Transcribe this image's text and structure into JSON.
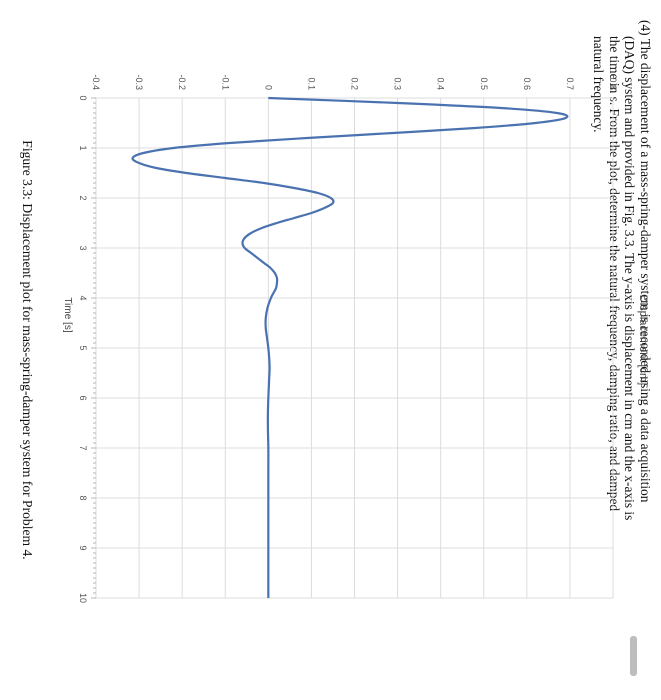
{
  "problem": {
    "number": "(4)",
    "lines": [
      "The displacement of a mass-spring-damper system is recorded using a data acquisition",
      "(DAQ) system and provided in Fig. 3.3. The y-axis is displacement in cm and the x-axis is",
      "the time in s. From the plot, determine the natural frequency, damping ratio, and damped",
      "natural frequency."
    ]
  },
  "caption": "Figure 3.3: Displacement plot for mass-spring-damper system for Problem 4.",
  "chart_data": {
    "type": "line",
    "title": "",
    "xlabel": "Time [s]",
    "ylabel": "Displacement [cm]",
    "xlim": [
      0,
      10
    ],
    "ylim": [
      -0.4,
      0.8
    ],
    "xticks": [
      "0",
      "1",
      "2",
      "3",
      "4",
      "5",
      "6",
      "7",
      "8",
      "9",
      "10"
    ],
    "yticks": [
      "-0.4",
      "-0.3",
      "-0.2",
      "-0.1",
      "0",
      "0.1",
      "0.2",
      "0.3",
      "0.4",
      "0.5",
      "0.6",
      "0.7",
      "0.8"
    ],
    "grid": true,
    "series": [
      {
        "color": "#4a72b0",
        "x": [
          0,
          0.1,
          0.2,
          0.3,
          0.4,
          0.5,
          0.6,
          0.7,
          0.8,
          0.9,
          1.0,
          1.1,
          1.2,
          1.3,
          1.4,
          1.5,
          1.6,
          1.7,
          1.8,
          1.9,
          2.0,
          2.1,
          2.2,
          2.3,
          2.4,
          2.5,
          2.6,
          2.7,
          2.8,
          2.9,
          3.0,
          3.1,
          3.2,
          3.3,
          3.4,
          3.5,
          3.6,
          3.7,
          3.8,
          3.9,
          4.0,
          4.2,
          4.4,
          4.6,
          4.8,
          5.0,
          5.2,
          5.4,
          5.6,
          5.8,
          6.0,
          6.3,
          6.6,
          7.0,
          7.5,
          8.0,
          8.5,
          9.0,
          9.5,
          10.0
        ],
        "y": [
          0.0,
          0.3,
          0.54,
          0.67,
          0.69,
          0.62,
          0.48,
          0.29,
          0.09,
          -0.09,
          -0.22,
          -0.29,
          -0.315,
          -0.3,
          -0.26,
          -0.19,
          -0.1,
          -0.01,
          0.06,
          0.115,
          0.145,
          0.15,
          0.13,
          0.1,
          0.06,
          0.02,
          -0.015,
          -0.04,
          -0.055,
          -0.06,
          -0.055,
          -0.04,
          -0.025,
          -0.01,
          0.005,
          0.015,
          0.02,
          0.02,
          0.018,
          0.012,
          0.006,
          -0.002,
          -0.006,
          -0.006,
          -0.003,
          0.0,
          0.002,
          0.003,
          0.002,
          0.001,
          0.0,
          -0.001,
          -0.001,
          0.0,
          0.0,
          0.0,
          0.0,
          0.0,
          0.0,
          0.0
        ]
      }
    ]
  }
}
